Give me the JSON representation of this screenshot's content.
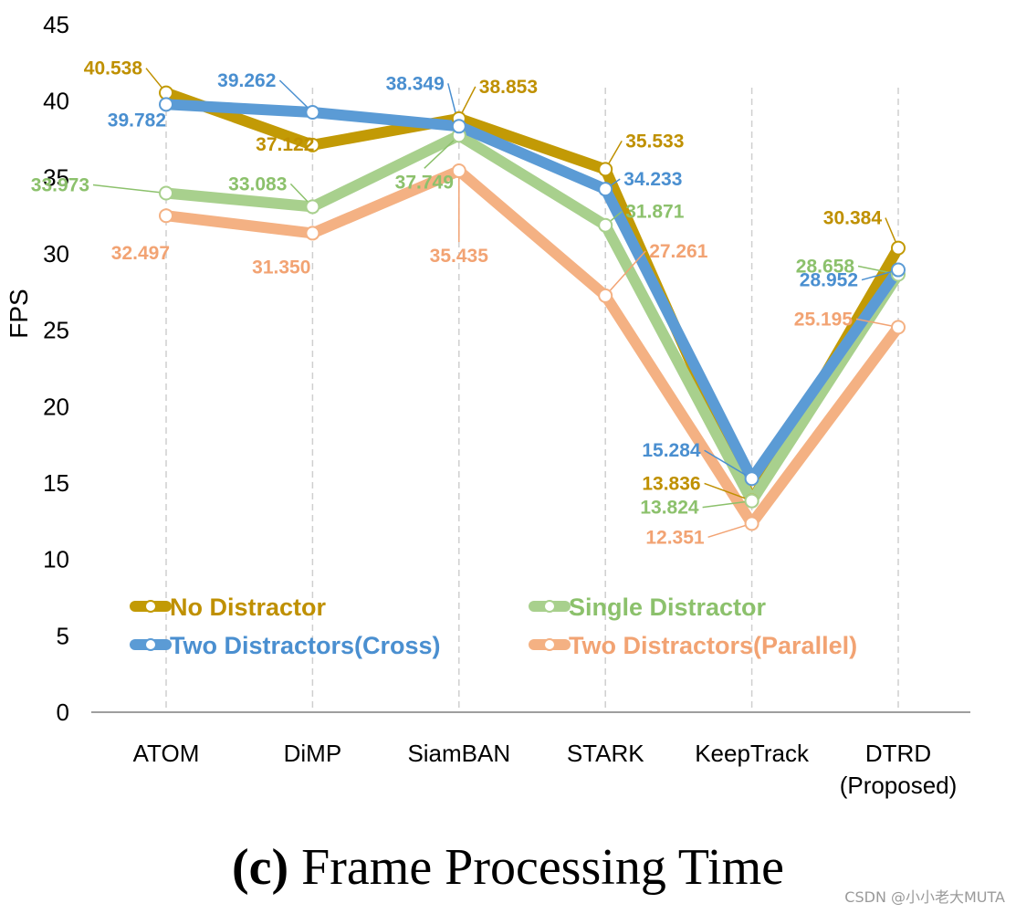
{
  "chart_data": {
    "type": "line",
    "title": "",
    "xlabel": "",
    "ylabel": "FPS",
    "ylim": [
      0,
      45
    ],
    "yticks": [
      0,
      5,
      10,
      15,
      20,
      25,
      30,
      35,
      40,
      45
    ],
    "grid": "vertical dashed lines at categories",
    "legend_placement": "bottom-inside",
    "categories": [
      "ATOM",
      "DiMP",
      "SiamBAN",
      "STARK",
      "KeepTrack",
      "DTRD\n(Proposed)"
    ],
    "series": [
      {
        "name": "No Distractor",
        "color": "#C29A05",
        "values": [
          40.538,
          37.122,
          38.853,
          35.533,
          13.836,
          30.384
        ]
      },
      {
        "name": "Single Distractor",
        "color": "#A8D08D",
        "values": [
          33.973,
          33.083,
          37.749,
          31.871,
          13.824,
          28.658
        ]
      },
      {
        "name": "Two Distractors(Cross)",
        "color": "#5B9BD5",
        "values": [
          39.782,
          39.262,
          38.349,
          34.233,
          15.284,
          28.952
        ]
      },
      {
        "name": "Two Distractors(Parallel)",
        "color": "#F4B183",
        "values": [
          32.497,
          31.35,
          35.435,
          27.261,
          12.351,
          25.195
        ]
      }
    ],
    "label_text_colors": {
      "No Distractor": "#BF9000",
      "Single Distractor": "#8CC16C",
      "Two Distractors(Cross)": "#4A8FD0",
      "Two Distractors(Parallel)": "#F2A373"
    }
  },
  "caption": {
    "prefix": "(c)",
    "text": "Frame Processing Time"
  },
  "watermark": "CSDN @小小老大MUTA"
}
